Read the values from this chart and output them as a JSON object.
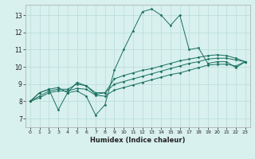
{
  "xlabel": "Humidex (Indice chaleur)",
  "bg_color": "#d8f0ee",
  "grid_color": "#b8dcd8",
  "line_color": "#1a7060",
  "xlim": [
    -0.5,
    23.5
  ],
  "ylim": [
    6.5,
    13.6
  ],
  "yticks": [
    7,
    8,
    9,
    10,
    11,
    12,
    13
  ],
  "xticks": [
    0,
    1,
    2,
    3,
    4,
    5,
    6,
    7,
    8,
    9,
    10,
    11,
    12,
    13,
    14,
    15,
    16,
    17,
    18,
    19,
    20,
    21,
    22,
    23
  ],
  "series": [
    [
      8.0,
      8.5,
      8.7,
      7.5,
      8.5,
      8.6,
      8.3,
      7.2,
      7.8,
      9.8,
      11.0,
      12.1,
      13.2,
      13.35,
      13.0,
      12.4,
      13.0,
      11.0,
      11.1,
      10.2,
      10.3,
      10.3,
      9.95,
      10.3
    ],
    [
      8.0,
      8.5,
      8.7,
      8.8,
      8.5,
      9.1,
      8.9,
      8.4,
      8.5,
      9.3,
      9.5,
      9.65,
      9.8,
      9.9,
      10.05,
      10.2,
      10.35,
      10.45,
      10.55,
      10.65,
      10.7,
      10.65,
      10.5,
      10.3
    ],
    [
      8.0,
      8.3,
      8.6,
      8.7,
      8.7,
      9.0,
      8.9,
      8.5,
      8.5,
      9.0,
      9.15,
      9.3,
      9.45,
      9.6,
      9.75,
      9.9,
      10.05,
      10.2,
      10.3,
      10.45,
      10.5,
      10.5,
      10.4,
      10.3
    ],
    [
      8.0,
      8.2,
      8.5,
      8.6,
      8.6,
      8.75,
      8.7,
      8.35,
      8.3,
      8.65,
      8.8,
      8.95,
      9.1,
      9.25,
      9.4,
      9.55,
      9.65,
      9.8,
      9.95,
      10.1,
      10.15,
      10.15,
      10.05,
      10.3
    ]
  ]
}
